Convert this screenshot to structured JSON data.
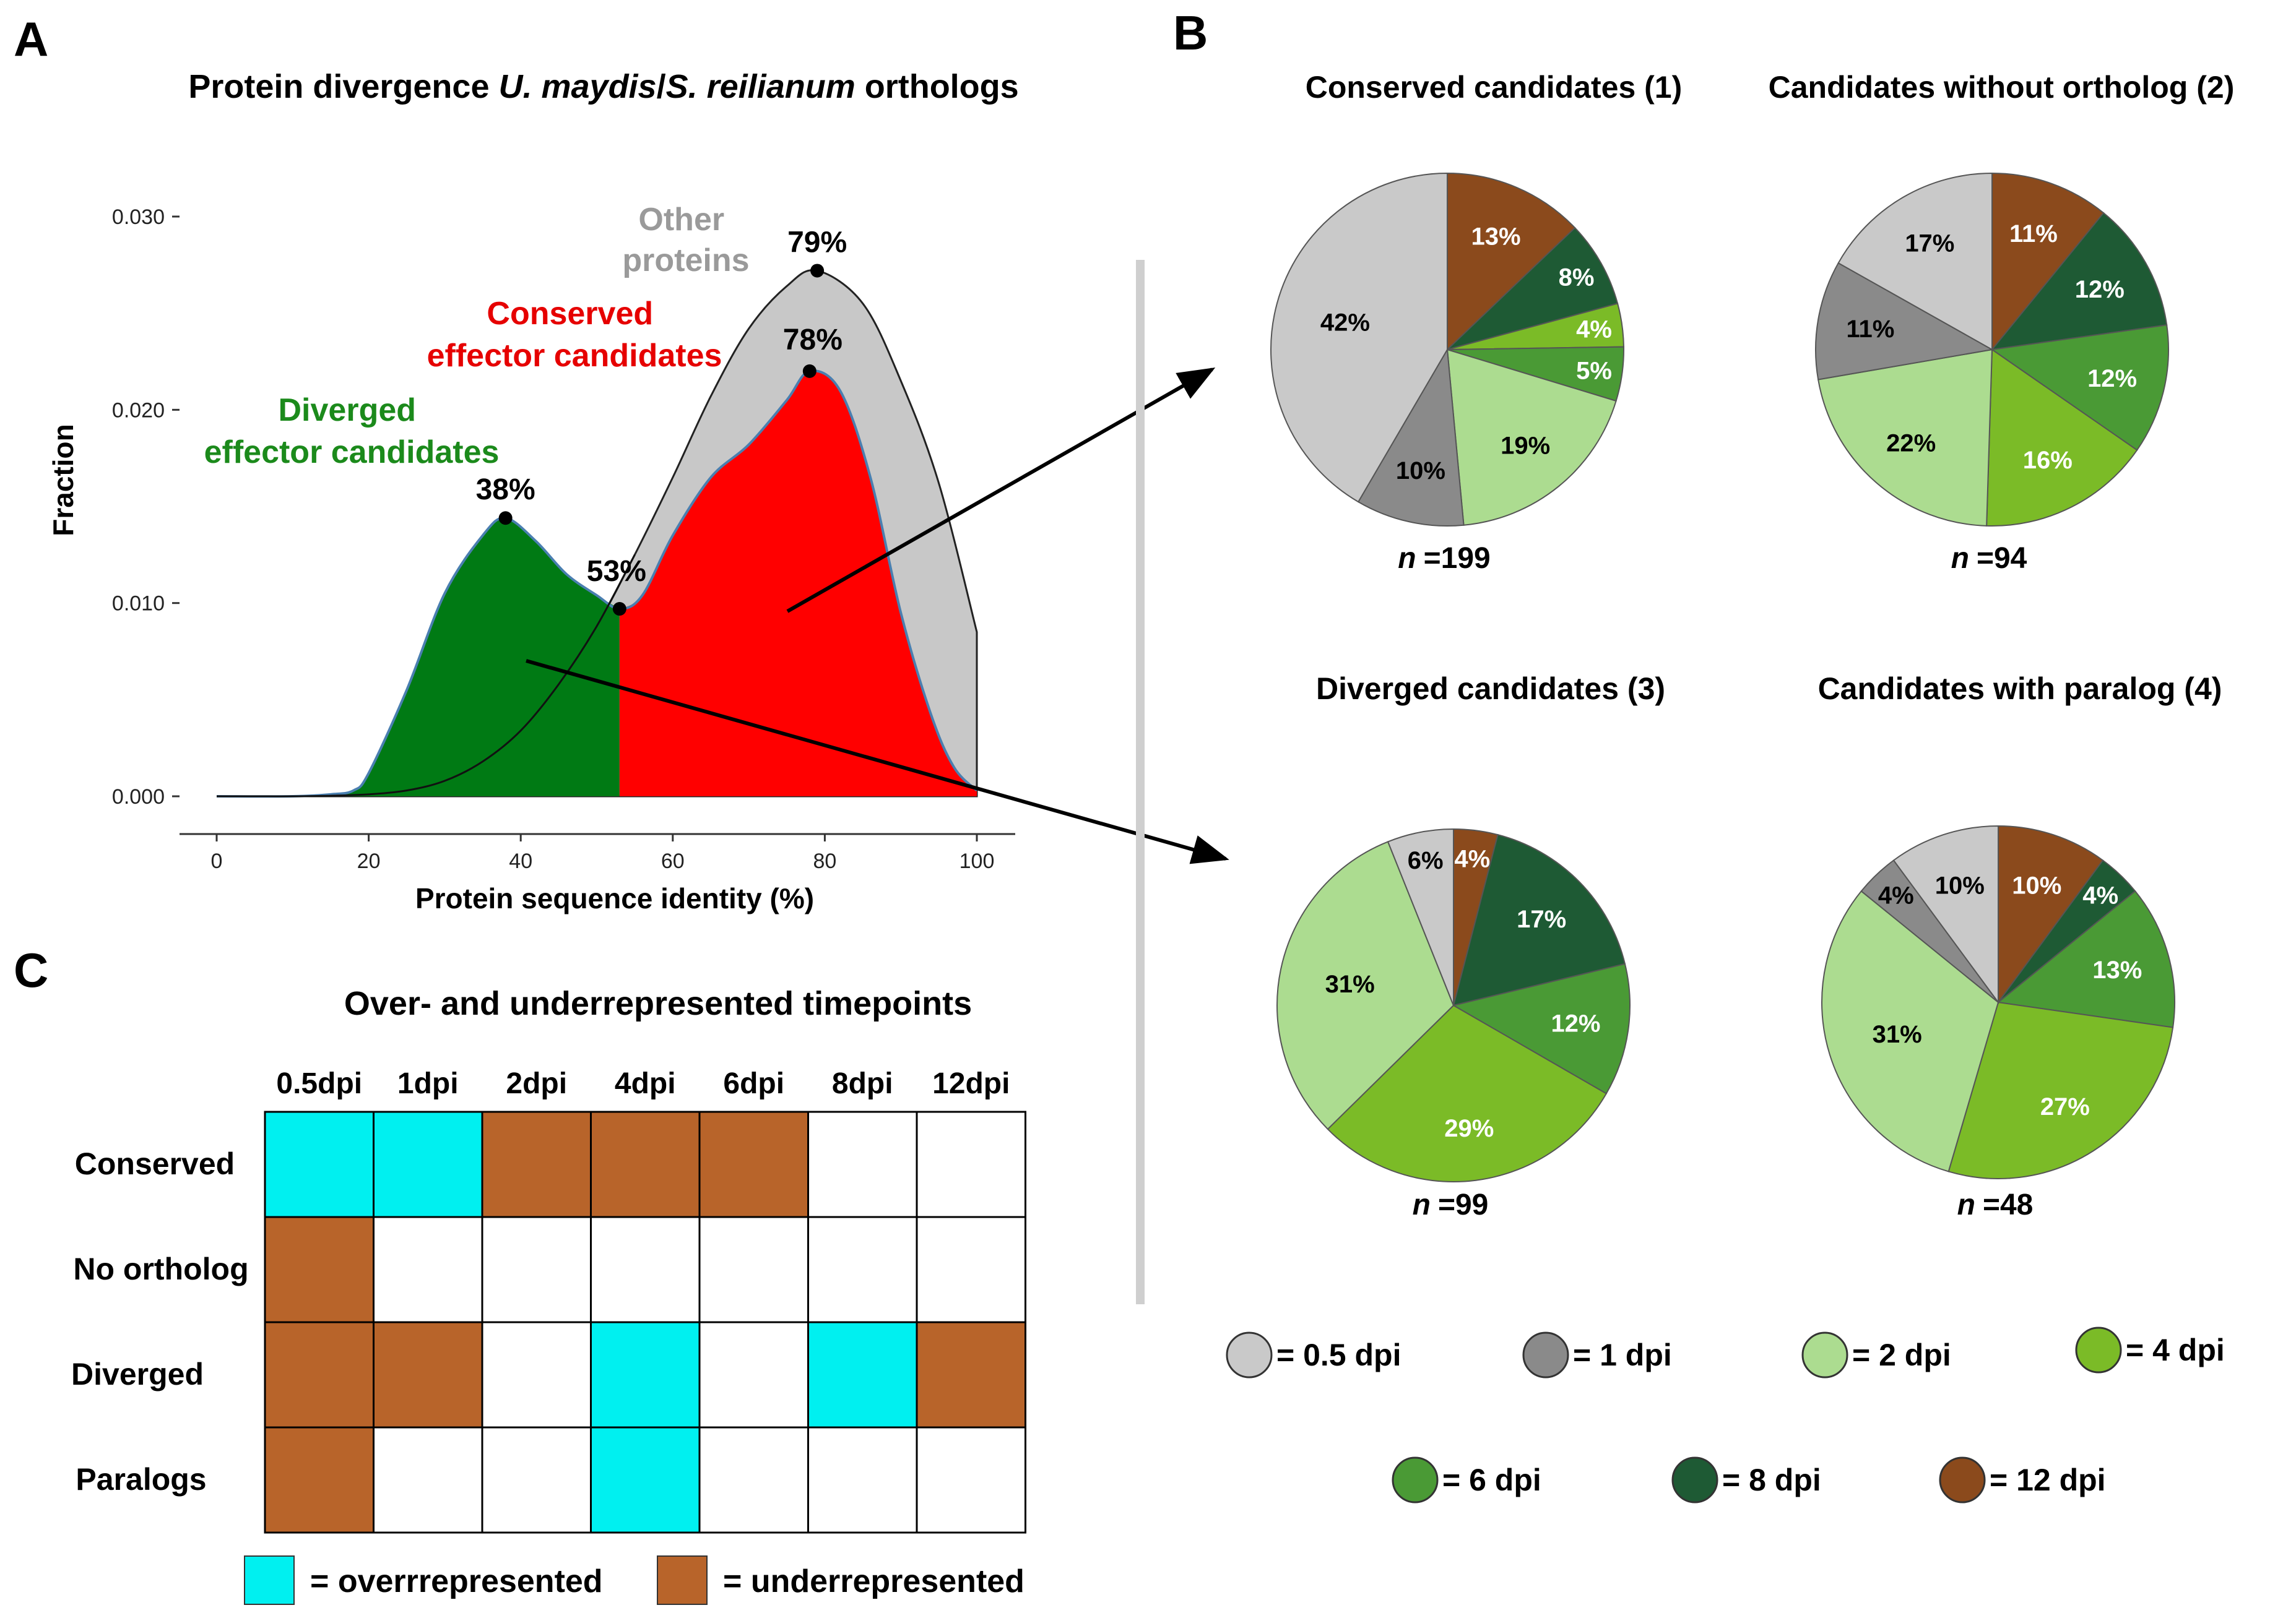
{
  "colors": {
    "dpi_0_5": "#c9c9c9",
    "dpi_1": "#8a8a8a",
    "dpi_2": "#acdc90",
    "dpi_4": "#7bbb27",
    "dpi_6": "#4a9a35",
    "dpi_8": "#1e5a34",
    "dpi_12": "#8b4a1c",
    "diverged_fill": "#007a14",
    "conserved_fill": "#ff0000",
    "other_fill": "#c8c8c8",
    "over": "#00f0f0",
    "under": "#b8642a"
  },
  "panel_labels": {
    "a": "A",
    "b": "B",
    "c": "C"
  },
  "chart_data": [
    {
      "id": "density",
      "type": "area",
      "title_parts": [
        "Protein divergence ",
        "U. maydis",
        "/",
        "S. reilianum",
        " orthologs"
      ],
      "xlabel": "Protein sequence identity (%)",
      "ylabel": "Fraction",
      "xlim": [
        0,
        100
      ],
      "ylim": [
        0,
        0.03
      ],
      "xticks": [
        0,
        20,
        40,
        60,
        80,
        100
      ],
      "yticks": [
        "0.000",
        "0.010",
        "0.020",
        "0.030"
      ],
      "series": [
        {
          "name": "Other proteins",
          "label_lines": [
            "Other",
            "proteins"
          ],
          "x": [
            0,
            5,
            10,
            15,
            20,
            25,
            30,
            35,
            40,
            45,
            50,
            55,
            60,
            65,
            70,
            75,
            79,
            85,
            90,
            95,
            100
          ],
          "y": [
            0,
            0,
            0,
            3e-05,
            0.0001,
            0.0003,
            0.0008,
            0.0018,
            0.0034,
            0.0058,
            0.0088,
            0.0125,
            0.0165,
            0.0207,
            0.0242,
            0.0264,
            0.0272,
            0.0255,
            0.0215,
            0.0162,
            0.0085
          ]
        },
        {
          "name": "Effector candidates",
          "x": [
            0,
            10,
            15,
            18,
            20,
            25,
            30,
            35,
            38,
            42,
            46,
            50,
            53,
            56,
            60,
            65,
            70,
            75,
            78,
            82,
            86,
            90,
            94,
            97,
            100
          ],
          "y": [
            0,
            0,
            0.0001,
            0.0003,
            0.0012,
            0.0055,
            0.0105,
            0.0135,
            0.0144,
            0.0132,
            0.0115,
            0.0104,
            0.0097,
            0.0104,
            0.0135,
            0.0165,
            0.0182,
            0.0205,
            0.022,
            0.021,
            0.0165,
            0.0095,
            0.0042,
            0.0015,
            0.0003
          ]
        }
      ],
      "split_x": 53,
      "region_labels": {
        "diverged": [
          "Diverged",
          "effector candidates"
        ],
        "conserved": [
          "Conserved",
          "effector candidates"
        ]
      },
      "peaks": [
        {
          "x": 38,
          "y": 0.0144,
          "label": "38%"
        },
        {
          "x": 53,
          "y": 0.0097,
          "label": "53%"
        },
        {
          "x": 78,
          "y": 0.022,
          "label": "78%"
        },
        {
          "x": 79,
          "y": 0.0272,
          "label": "79%"
        }
      ]
    },
    {
      "id": "pie1",
      "type": "pie",
      "title": "Conserved candidates (1)",
      "n_prefix": "n",
      "n_value": "=199",
      "slices": [
        {
          "dpi": "12 dpi",
          "value": 13,
          "label": "13%"
        },
        {
          "dpi": "8 dpi",
          "value": 8,
          "label": "8%"
        },
        {
          "dpi": "4 dpi",
          "value": 4,
          "label": "4%"
        },
        {
          "dpi": "6 dpi",
          "value": 5,
          "label": "5%"
        },
        {
          "dpi": "2 dpi",
          "value": 19,
          "label": "19%"
        },
        {
          "dpi": "1 dpi",
          "value": 10,
          "label": "10%"
        },
        {
          "dpi": "0.5 dpi",
          "value": 42,
          "label": "42%"
        }
      ]
    },
    {
      "id": "pie2",
      "type": "pie",
      "title": "Candidates without ortholog (2)",
      "n_prefix": "n",
      "n_value": "=94",
      "slices": [
        {
          "dpi": "12 dpi",
          "value": 11,
          "label": "11%"
        },
        {
          "dpi": "8 dpi",
          "value": 12,
          "label": "12%"
        },
        {
          "dpi": "6 dpi",
          "value": 12,
          "label": "12%"
        },
        {
          "dpi": "4 dpi",
          "value": 16,
          "label": "16%"
        },
        {
          "dpi": "2 dpi",
          "value": 22,
          "label": "22%"
        },
        {
          "dpi": "1 dpi",
          "value": 11,
          "label": "11%"
        },
        {
          "dpi": "0.5 dpi",
          "value": 17,
          "label": "17%"
        }
      ]
    },
    {
      "id": "pie3",
      "type": "pie",
      "title": "Diverged candidates (3)",
      "n_prefix": "n",
      "n_value": "=99",
      "slices": [
        {
          "dpi": "12 dpi",
          "value": 4,
          "label": "4%"
        },
        {
          "dpi": "8 dpi",
          "value": 17,
          "label": "17%"
        },
        {
          "dpi": "6 dpi",
          "value": 12,
          "label": "12%"
        },
        {
          "dpi": "4 dpi",
          "value": 29,
          "label": "29%"
        },
        {
          "dpi": "2 dpi",
          "value": 31,
          "label": "31%"
        },
        {
          "dpi": "0.5 dpi",
          "value": 6,
          "label": "6%"
        }
      ]
    },
    {
      "id": "pie4",
      "type": "pie",
      "title": "Candidates with paralog (4)",
      "n_prefix": "n",
      "n_value": "=48",
      "slices": [
        {
          "dpi": "12 dpi",
          "value": 10,
          "label": "10%"
        },
        {
          "dpi": "8 dpi",
          "value": 4,
          "label": "4%"
        },
        {
          "dpi": "6 dpi",
          "value": 13,
          "label": "13%"
        },
        {
          "dpi": "4 dpi",
          "value": 27,
          "label": "27%"
        },
        {
          "dpi": "2 dpi",
          "value": 31,
          "label": "31%"
        },
        {
          "dpi": "1 dpi",
          "value": 4,
          "label": "4%"
        },
        {
          "dpi": "0.5 dpi",
          "value": 10,
          "label": "10%"
        }
      ]
    },
    {
      "id": "timepoints",
      "type": "table",
      "title": "Over- and underrepresented timepoints",
      "columns": [
        "0.5dpi",
        "1dpi",
        "2dpi",
        "4dpi",
        "6dpi",
        "8dpi",
        "12dpi"
      ],
      "rows": [
        {
          "label": "Conserved",
          "cells": [
            "over",
            "over",
            "under",
            "under",
            "under",
            "none",
            "none"
          ]
        },
        {
          "label": "No ortholog",
          "cells": [
            "under",
            "none",
            "none",
            "none",
            "none",
            "none",
            "none"
          ]
        },
        {
          "label": "Diverged",
          "cells": [
            "under",
            "under",
            "none",
            "over",
            "none",
            "over",
            "under"
          ]
        },
        {
          "label": "Paralogs",
          "cells": [
            "under",
            "none",
            "none",
            "over",
            "none",
            "none",
            "none"
          ]
        }
      ],
      "legend": [
        {
          "key": "over",
          "label": "= overrrepresented"
        },
        {
          "key": "under",
          "label": "= underrepresented"
        }
      ]
    }
  ],
  "dpi_legend": [
    {
      "dpi": "0.5 dpi",
      "label": "= 0.5 dpi"
    },
    {
      "dpi": "1 dpi",
      "label": "= 1 dpi"
    },
    {
      "dpi": "2 dpi",
      "label": "= 2 dpi"
    },
    {
      "dpi": "4 dpi",
      "label": "= 4 dpi"
    },
    {
      "dpi": "6 dpi",
      "label": "= 6 dpi"
    },
    {
      "dpi": "8 dpi",
      "label": "= 8 dpi"
    },
    {
      "dpi": "12 dpi",
      "label": "= 12 dpi"
    }
  ]
}
